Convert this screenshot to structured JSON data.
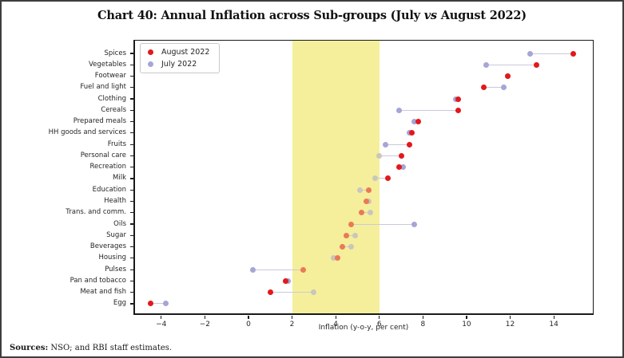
{
  "title": {
    "part1": "Chart 40: Annual Inflation across Sub-groups (July ",
    "vs": "vs",
    "part2": " August 2022)"
  },
  "footer": {
    "sources_label": "Sources:",
    "sources_text": " NSO; and RBI staff estimates."
  },
  "chart_data": {
    "type": "scatter",
    "subtype": "dumbbell-dot-plot",
    "title": "Chart 40: Annual Inflation across Sub-groups (July vs August 2022)",
    "xlabel": "Inflation (y-o-y, per cent)",
    "ylabel": "",
    "xticks": [
      -4,
      -2,
      0,
      2,
      4,
      6,
      8,
      10,
      12,
      14
    ],
    "xlim": [
      -5.2,
      15.9
    ],
    "grid": false,
    "legend_position": "upper-left",
    "tolerance_band": {
      "from": 2,
      "to": 6,
      "color": "#f5ef9b"
    },
    "categories": [
      "Spices",
      "Vegetables",
      "Footwear",
      "Fuel and light",
      "Clothing",
      "Cereals",
      "Prepared meals",
      "HH goods and services",
      "Fruits",
      "Personal care",
      "Recreation",
      "Milk",
      "Education",
      "Health",
      "Trans. and comm.",
      "Oils",
      "Sugar",
      "Beverages",
      "Housing",
      "Pulses",
      "Pan and tobacco",
      "Meat and fish",
      "Egg"
    ],
    "series": [
      {
        "name": "August 2022",
        "color": "#e2191c",
        "values": [
          14.9,
          13.2,
          11.9,
          10.8,
          9.6,
          9.6,
          7.8,
          7.5,
          7.4,
          7.0,
          6.9,
          6.4,
          5.5,
          5.4,
          5.2,
          4.7,
          4.5,
          4.3,
          4.1,
          2.5,
          1.7,
          1.0,
          -4.5
        ]
      },
      {
        "name": "July 2022",
        "color": "#a5a5d6",
        "values": [
          12.9,
          10.9,
          11.9,
          11.7,
          9.5,
          6.9,
          7.6,
          7.4,
          6.3,
          6.0,
          7.1,
          5.8,
          5.1,
          5.5,
          5.6,
          7.6,
          4.9,
          4.7,
          3.9,
          0.2,
          1.8,
          3.0,
          -3.8
        ]
      }
    ],
    "connector_color": "#c9c9da"
  }
}
